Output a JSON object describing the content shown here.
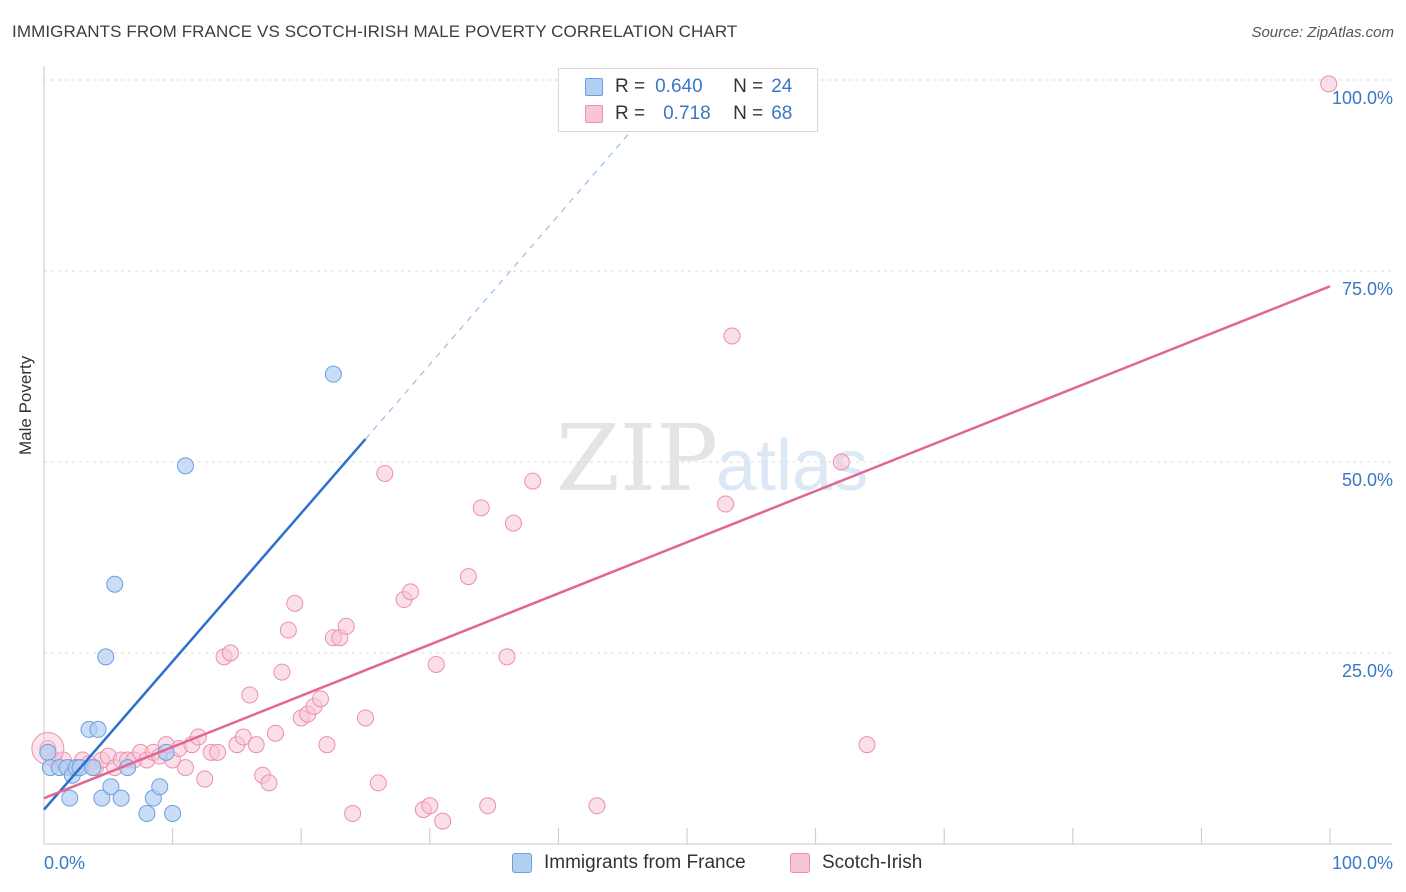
{
  "header": {
    "title": "IMMIGRANTS FROM FRANCE VS SCOTCH-IRISH MALE POVERTY CORRELATION CHART",
    "source": "Source: ZipAtlas.com"
  },
  "legend": {
    "r_label": "R =",
    "n_label": "N =",
    "series1": {
      "r": "0.640",
      "n": "24"
    },
    "series2": {
      "r": "0.718",
      "n": "68"
    }
  },
  "bottom_legend": {
    "series1": "Immigrants from France",
    "series2": "Scotch-Irish"
  },
  "watermark": {
    "zip": "ZIP",
    "atlas": "atlas"
  },
  "colors": {
    "blue_fill": "#b3cff2",
    "blue_stroke": "#6a9fe0",
    "blue_line": "#2f6fcf",
    "pink_fill": "#f7c5d5",
    "pink_stroke": "#ec8fae",
    "pink_line": "#e36692",
    "axis_label": "#3a78c4",
    "grid": "#dddddd"
  },
  "chart_data": {
    "type": "scatter",
    "title": "IMMIGRANTS FROM FRANCE VS SCOTCH-IRISH MALE POVERTY CORRELATION CHART",
    "xlabel": "",
    "ylabel": "Male Poverty",
    "xlim": [
      0,
      100
    ],
    "ylim": [
      0,
      100
    ],
    "x_tick_labels": [
      "0.0%",
      "100.0%"
    ],
    "y_tick_labels": [
      "25.0%",
      "50.0%",
      "75.0%",
      "100.0%"
    ],
    "y_ticks": [
      25,
      50,
      75,
      100
    ],
    "grid": true,
    "legend_position": "top-center",
    "series": [
      {
        "name": "Immigrants from France",
        "color": "#6a9fe0",
        "r": 0.64,
        "n": 24,
        "points": [
          {
            "x": 0.3,
            "y": 12
          },
          {
            "x": 0.5,
            "y": 10
          },
          {
            "x": 1.2,
            "y": 10
          },
          {
            "x": 1.8,
            "y": 10
          },
          {
            "x": 2.2,
            "y": 9
          },
          {
            "x": 2.5,
            "y": 10
          },
          {
            "x": 2.0,
            "y": 6
          },
          {
            "x": 2.8,
            "y": 10
          },
          {
            "x": 3.5,
            "y": 15
          },
          {
            "x": 3.8,
            "y": 10
          },
          {
            "x": 4.2,
            "y": 15
          },
          {
            "x": 4.5,
            "y": 6
          },
          {
            "x": 4.8,
            "y": 24.5
          },
          {
            "x": 5.2,
            "y": 7.5
          },
          {
            "x": 5.5,
            "y": 34
          },
          {
            "x": 6.0,
            "y": 6
          },
          {
            "x": 6.5,
            "y": 10
          },
          {
            "x": 8.0,
            "y": 4
          },
          {
            "x": 8.5,
            "y": 6
          },
          {
            "x": 9.0,
            "y": 7.5
          },
          {
            "x": 9.5,
            "y": 12
          },
          {
            "x": 10.0,
            "y": 4
          },
          {
            "x": 11.0,
            "y": 49.5
          },
          {
            "x": 22.5,
            "y": 61.5
          }
        ],
        "trend": {
          "x0": 0,
          "y0": 4.5,
          "x1": 25,
          "y1": 53,
          "dash_to_x": 46,
          "dash_to_y": 94
        }
      },
      {
        "name": "Scotch-Irish",
        "color": "#ec8fae",
        "r": 0.718,
        "n": 68,
        "points": [
          {
            "x": 0.3,
            "y": 12.5
          },
          {
            "x": 0.8,
            "y": 11
          },
          {
            "x": 1.5,
            "y": 11
          },
          {
            "x": 2.0,
            "y": 10
          },
          {
            "x": 2.5,
            "y": 10
          },
          {
            "x": 3.0,
            "y": 11
          },
          {
            "x": 3.5,
            "y": 10.5
          },
          {
            "x": 4.0,
            "y": 10
          },
          {
            "x": 4.5,
            "y": 11
          },
          {
            "x": 5.0,
            "y": 11.5
          },
          {
            "x": 5.5,
            "y": 10
          },
          {
            "x": 6.0,
            "y": 11
          },
          {
            "x": 6.5,
            "y": 11
          },
          {
            "x": 7.0,
            "y": 11
          },
          {
            "x": 7.5,
            "y": 12
          },
          {
            "x": 8.0,
            "y": 11
          },
          {
            "x": 8.5,
            "y": 12
          },
          {
            "x": 9.0,
            "y": 11.5
          },
          {
            "x": 9.5,
            "y": 13
          },
          {
            "x": 10.0,
            "y": 11
          },
          {
            "x": 10.5,
            "y": 12.5
          },
          {
            "x": 11.0,
            "y": 10
          },
          {
            "x": 11.5,
            "y": 13
          },
          {
            "x": 12.0,
            "y": 14
          },
          {
            "x": 12.5,
            "y": 8.5
          },
          {
            "x": 13.0,
            "y": 12
          },
          {
            "x": 13.5,
            "y": 12
          },
          {
            "x": 14.0,
            "y": 24.5
          },
          {
            "x": 14.5,
            "y": 25
          },
          {
            "x": 15.0,
            "y": 13
          },
          {
            "x": 15.5,
            "y": 14
          },
          {
            "x": 16.0,
            "y": 19.5
          },
          {
            "x": 16.5,
            "y": 13
          },
          {
            "x": 17.0,
            "y": 9
          },
          {
            "x": 17.5,
            "y": 8
          },
          {
            "x": 18.0,
            "y": 14.5
          },
          {
            "x": 18.5,
            "y": 22.5
          },
          {
            "x": 19.0,
            "y": 28
          },
          {
            "x": 19.5,
            "y": 31.5
          },
          {
            "x": 20.0,
            "y": 16.5
          },
          {
            "x": 20.5,
            "y": 17
          },
          {
            "x": 21.0,
            "y": 18
          },
          {
            "x": 21.5,
            "y": 19
          },
          {
            "x": 22.0,
            "y": 13
          },
          {
            "x": 22.5,
            "y": 27
          },
          {
            "x": 23.0,
            "y": 27
          },
          {
            "x": 23.5,
            "y": 28.5
          },
          {
            "x": 24.0,
            "y": 4
          },
          {
            "x": 25.0,
            "y": 16.5
          },
          {
            "x": 26.0,
            "y": 8
          },
          {
            "x": 26.5,
            "y": 48.5
          },
          {
            "x": 28.0,
            "y": 32
          },
          {
            "x": 28.5,
            "y": 33
          },
          {
            "x": 29.5,
            "y": 4.5
          },
          {
            "x": 30.0,
            "y": 5
          },
          {
            "x": 30.5,
            "y": 23.5
          },
          {
            "x": 31.0,
            "y": 3
          },
          {
            "x": 33.0,
            "y": 35
          },
          {
            "x": 34.0,
            "y": 44
          },
          {
            "x": 34.5,
            "y": 5
          },
          {
            "x": 36.0,
            "y": 24.5
          },
          {
            "x": 36.5,
            "y": 42
          },
          {
            "x": 38.0,
            "y": 47.5
          },
          {
            "x": 43.0,
            "y": 5
          },
          {
            "x": 53.0,
            "y": 44.5
          },
          {
            "x": 53.5,
            "y": 66.5
          },
          {
            "x": 62.0,
            "y": 50
          },
          {
            "x": 64.0,
            "y": 13
          }
        ],
        "extra_points": [
          {
            "x": 99.9,
            "y": 99.5
          }
        ],
        "trend": {
          "x0": 0,
          "y0": 6,
          "x1": 100,
          "y1": 73
        }
      }
    ]
  }
}
